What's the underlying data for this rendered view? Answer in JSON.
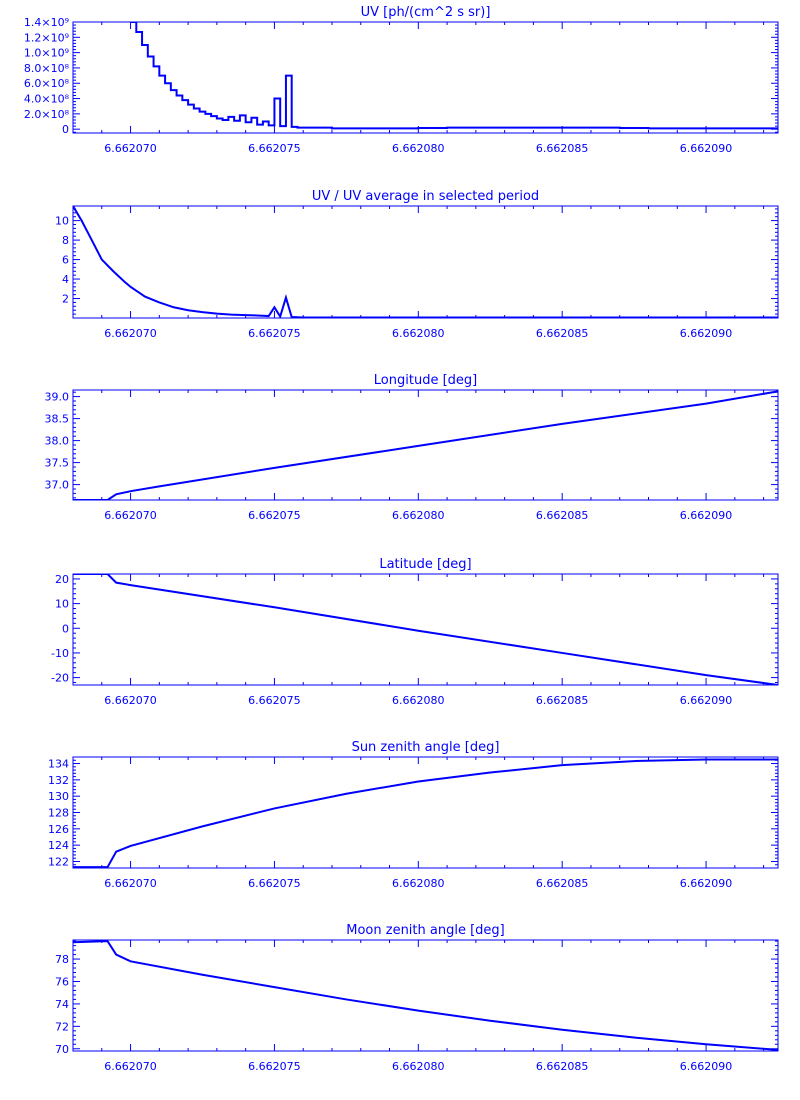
{
  "colors": {
    "line": "#0000ff",
    "background": "#ffffff"
  },
  "chart_data": [
    {
      "type": "line",
      "step": true,
      "title": "UV [ph/(cm^2 s sr)]",
      "xlabel": "",
      "ylabel": "",
      "xlim": [
        6.662068,
        6.6620925
      ],
      "ylim": [
        -50000000,
        1400000000
      ],
      "xticks": [
        6.66207,
        6.662075,
        6.66208,
        6.662085,
        6.66209
      ],
      "xtick_labels": [
        "6.662070",
        "6.662075",
        "6.662080",
        "6.662085",
        "6.662090"
      ],
      "yticks": [
        0,
        200000000,
        400000000,
        600000000,
        800000000,
        1000000000,
        1200000000,
        1400000000
      ],
      "ytick_labels": [
        "0",
        "2.0×10⁸",
        "4.0×10⁸",
        "6.0×10⁸",
        "8.0×10⁸",
        "1.0×10⁹",
        "1.2×10⁹",
        "1.4×10⁹"
      ],
      "grid": false,
      "series": [
        {
          "x": [
            6.66207,
            6.6620702,
            6.6620704,
            6.6620706,
            6.6620708,
            6.662071,
            6.6620712,
            6.6620714,
            6.6620716,
            6.6620718,
            6.662072,
            6.6620722,
            6.6620724,
            6.6620726,
            6.6620728,
            6.662073,
            6.6620732,
            6.6620734,
            6.6620736,
            6.6620738,
            6.662074,
            6.6620742,
            6.6620744,
            6.6620746,
            6.6620748,
            6.662075,
            6.6620752,
            6.6620754,
            6.6620756,
            6.6620758,
            6.662076,
            6.662077,
            6.662078,
            6.662079,
            6.66208,
            6.662081,
            6.662082,
            6.662083,
            6.662084,
            6.662085,
            6.662086,
            6.662087,
            6.662088,
            6.662089,
            6.66209,
            6.662091,
            6.662092
          ],
          "y": [
            1400000000,
            1270000000,
            1100000000,
            950000000,
            820000000,
            700000000,
            600000000,
            510000000,
            440000000,
            380000000,
            320000000,
            270000000,
            230000000,
            200000000,
            170000000,
            140000000,
            120000000,
            160000000,
            110000000,
            180000000,
            90000000,
            150000000,
            60000000,
            100000000,
            50000000,
            400000000,
            40000000,
            700000000,
            30000000,
            20000000,
            20000000,
            10000000,
            10000000,
            10000000,
            15000000,
            20000000,
            20000000,
            20000000,
            20000000,
            20000000,
            20000000,
            15000000,
            10000000,
            10000000,
            10000000,
            10000000,
            10000000
          ]
        }
      ]
    },
    {
      "type": "line",
      "title": "UV / UV average in selected period",
      "xlabel": "",
      "ylabel": "",
      "xlim": [
        6.662068,
        6.6620925
      ],
      "ylim": [
        0,
        11.5
      ],
      "xticks": [
        6.66207,
        6.662075,
        6.66208,
        6.662085,
        6.66209
      ],
      "xtick_labels": [
        "6.662070",
        "6.662075",
        "6.662080",
        "6.662085",
        "6.662090"
      ],
      "yticks": [
        2,
        4,
        6,
        8,
        10
      ],
      "ytick_labels": [
        "2",
        "4",
        "6",
        "8",
        "10"
      ],
      "grid": false,
      "series": [
        {
          "x": [
            6.662068,
            6.6620683,
            6.6620686,
            6.662069,
            6.6620694,
            6.6620698,
            6.66207,
            6.6620705,
            6.662071,
            6.6620715,
            6.662072,
            6.6620725,
            6.662073,
            6.6620735,
            6.662074,
            6.6620745,
            6.6620748,
            6.662075,
            6.6620752,
            6.6620754,
            6.6620756,
            6.6620758,
            6.662076,
            6.662078,
            6.66208,
            6.662085,
            6.66209,
            6.6620925
          ],
          "y": [
            11.5,
            10.0,
            8.3,
            6.0,
            4.8,
            3.7,
            3.2,
            2.2,
            1.6,
            1.1,
            0.8,
            0.6,
            0.45,
            0.35,
            0.3,
            0.25,
            0.2,
            1.1,
            0.15,
            2.1,
            0.1,
            0.08,
            0.05,
            0.05,
            0.05,
            0.05,
            0.05,
            0.05
          ]
        }
      ]
    },
    {
      "type": "line",
      "title": "Longitude [deg]",
      "xlabel": "",
      "ylabel": "",
      "xlim": [
        6.662068,
        6.6620925
      ],
      "ylim": [
        36.65,
        39.15
      ],
      "xticks": [
        6.66207,
        6.662075,
        6.66208,
        6.662085,
        6.66209
      ],
      "xtick_labels": [
        "6.662070",
        "6.662075",
        "6.662080",
        "6.662085",
        "6.662090"
      ],
      "yticks": [
        37.0,
        37.5,
        38.0,
        38.5,
        39.0
      ],
      "ytick_labels": [
        "37.0",
        "37.5",
        "38.0",
        "38.5",
        "39.0"
      ],
      "grid": false,
      "series": [
        {
          "x": [
            6.662068,
            6.6620692,
            6.6620695,
            6.66207,
            6.662071,
            6.662075,
            6.66208,
            6.662085,
            6.66209,
            6.6620925
          ],
          "y": [
            36.65,
            36.65,
            36.78,
            36.85,
            36.96,
            37.38,
            37.88,
            38.38,
            38.84,
            39.12
          ]
        }
      ]
    },
    {
      "type": "line",
      "title": "Latitude [deg]",
      "xlabel": "",
      "ylabel": "",
      "xlim": [
        6.662068,
        6.6620925
      ],
      "ylim": [
        -23,
        22
      ],
      "xticks": [
        6.66207,
        6.662075,
        6.66208,
        6.662085,
        6.66209
      ],
      "xtick_labels": [
        "6.662070",
        "6.662075",
        "6.662080",
        "6.662085",
        "6.662090"
      ],
      "yticks": [
        -20,
        -10,
        0,
        10,
        20
      ],
      "ytick_labels": [
        "-20",
        "-10",
        "0",
        "10",
        "20"
      ],
      "grid": false,
      "series": [
        {
          "x": [
            6.662068,
            6.6620692,
            6.6620695,
            6.66207,
            6.662075,
            6.66208,
            6.662085,
            6.66209,
            6.6620925
          ],
          "y": [
            22,
            22,
            18.5,
            17.5,
            8.5,
            -1,
            -10,
            -19,
            -23
          ]
        }
      ]
    },
    {
      "type": "line",
      "title": "Sun zenith angle [deg]",
      "xlabel": "",
      "ylabel": "",
      "xlim": [
        6.662068,
        6.6620925
      ],
      "ylim": [
        121.2,
        134.8
      ],
      "xticks": [
        6.66207,
        6.662075,
        6.66208,
        6.662085,
        6.66209
      ],
      "xtick_labels": [
        "6.662070",
        "6.662075",
        "6.662080",
        "6.662085",
        "6.662090"
      ],
      "yticks": [
        122,
        124,
        126,
        128,
        130,
        132,
        134
      ],
      "ytick_labels": [
        "122",
        "124",
        "126",
        "128",
        "130",
        "132",
        "134"
      ],
      "grid": false,
      "series": [
        {
          "x": [
            6.662068,
            6.6620692,
            6.6620695,
            6.66207,
            6.6620725,
            6.662075,
            6.6620775,
            6.66208,
            6.6620825,
            6.662085,
            6.6620875,
            6.66209,
            6.6620925
          ],
          "y": [
            121.3,
            121.3,
            123.2,
            123.9,
            126.3,
            128.5,
            130.3,
            131.8,
            132.9,
            133.8,
            134.3,
            134.5,
            134.5
          ]
        }
      ]
    },
    {
      "type": "line",
      "title": "Moon zenith angle [deg]",
      "xlabel": "",
      "ylabel": "",
      "xlim": [
        6.662068,
        6.6620925
      ],
      "ylim": [
        69.8,
        79.7
      ],
      "xticks": [
        6.66207,
        6.662075,
        6.66208,
        6.662085,
        6.66209
      ],
      "xtick_labels": [
        "6.662070",
        "6.662075",
        "6.662080",
        "6.662085",
        "6.662090"
      ],
      "yticks": [
        70,
        72,
        74,
        76,
        78
      ],
      "ytick_labels": [
        "70",
        "72",
        "74",
        "76",
        "78"
      ],
      "grid": false,
      "series": [
        {
          "x": [
            6.662068,
            6.6620692,
            6.6620695,
            6.66207,
            6.6620725,
            6.662075,
            6.6620775,
            6.66208,
            6.6620825,
            6.662085,
            6.6620875,
            6.66209,
            6.6620925
          ],
          "y": [
            79.5,
            79.6,
            78.4,
            77.8,
            76.6,
            75.5,
            74.4,
            73.4,
            72.5,
            71.7,
            71.0,
            70.4,
            69.9
          ]
        }
      ]
    }
  ]
}
